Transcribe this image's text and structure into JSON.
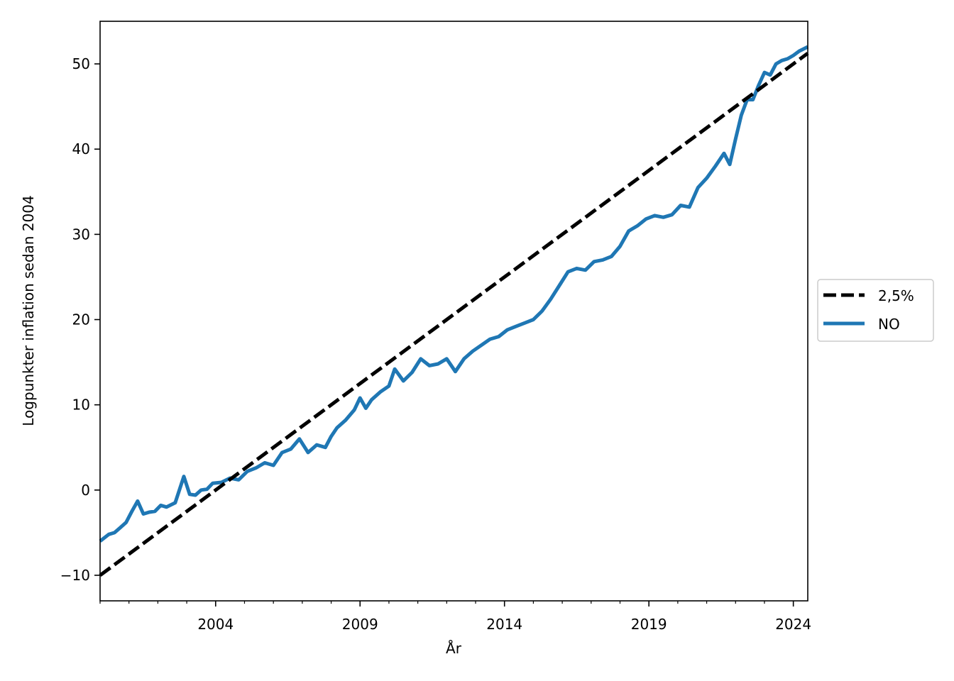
{
  "chart_data": {
    "type": "line",
    "title": "",
    "xlabel": "År",
    "ylabel": "Logpunkter inflation sedan 2004",
    "xlim": [
      2000.0,
      2024.5
    ],
    "ylim": [
      -13,
      55
    ],
    "xticks": [
      2004,
      2009,
      2014,
      2019,
      2024
    ],
    "yticks": [
      -10,
      0,
      10,
      20,
      30,
      40,
      50
    ],
    "grid": false,
    "legend": {
      "placement": "right, outside plot area",
      "entries": [
        "2,5%",
        "NO"
      ]
    },
    "series": [
      {
        "name": "2,5%",
        "style": "dashed",
        "color": "#000000",
        "x": [
          2000.0,
          2024.5
        ],
        "y": [
          -10.0,
          51.25
        ]
      },
      {
        "name": "NO",
        "style": "solid",
        "color": "#1f77b4",
        "x": [
          2000.0,
          2000.3,
          2000.5,
          2000.7,
          2000.9,
          2001.1,
          2001.3,
          2001.5,
          2001.7,
          2001.9,
          2002.1,
          2002.3,
          2002.6,
          2002.9,
          2003.1,
          2003.3,
          2003.5,
          2003.7,
          2003.9,
          2004.2,
          2004.5,
          2004.8,
          2005.1,
          2005.4,
          2005.7,
          2006.0,
          2006.3,
          2006.6,
          2006.9,
          2007.2,
          2007.5,
          2007.8,
          2008.0,
          2008.2,
          2008.5,
          2008.8,
          2009.0,
          2009.2,
          2009.4,
          2009.7,
          2010.0,
          2010.2,
          2010.5,
          2010.8,
          2011.1,
          2011.4,
          2011.7,
          2012.0,
          2012.3,
          2012.6,
          2012.9,
          2013.2,
          2013.5,
          2013.8,
          2014.1,
          2014.4,
          2014.7,
          2015.0,
          2015.3,
          2015.6,
          2015.9,
          2016.2,
          2016.5,
          2016.8,
          2017.1,
          2017.4,
          2017.7,
          2018.0,
          2018.3,
          2018.6,
          2018.9,
          2019.2,
          2019.5,
          2019.8,
          2020.1,
          2020.4,
          2020.7,
          2021.0,
          2021.3,
          2021.6,
          2021.8,
          2022.0,
          2022.2,
          2022.4,
          2022.6,
          2022.8,
          2023.0,
          2023.2,
          2023.4,
          2023.6,
          2023.8,
          2024.0,
          2024.2,
          2024.5
        ],
        "y": [
          -6.0,
          -5.2,
          -5.0,
          -4.4,
          -3.8,
          -2.5,
          -1.3,
          -2.8,
          -2.6,
          -2.5,
          -1.8,
          -2.0,
          -1.5,
          1.6,
          -0.5,
          -0.6,
          0.0,
          0.1,
          0.8,
          0.9,
          1.4,
          1.2,
          2.2,
          2.6,
          3.2,
          2.9,
          4.4,
          4.8,
          6.0,
          4.4,
          5.3,
          5.0,
          6.3,
          7.3,
          8.2,
          9.4,
          10.8,
          9.6,
          10.6,
          11.5,
          12.2,
          14.2,
          12.8,
          13.8,
          15.4,
          14.6,
          14.8,
          15.4,
          13.9,
          15.4,
          16.3,
          17.0,
          17.7,
          18.0,
          18.8,
          19.2,
          19.6,
          20.0,
          21.0,
          22.4,
          24.0,
          25.6,
          26.0,
          25.8,
          26.8,
          27.0,
          27.4,
          28.6,
          30.4,
          31.0,
          31.8,
          32.2,
          32.0,
          32.3,
          33.4,
          33.2,
          35.5,
          36.6,
          38.0,
          39.5,
          38.2,
          41.2,
          44.0,
          45.8,
          45.8,
          47.5,
          49.0,
          48.7,
          50.0,
          50.4,
          50.6,
          51.0,
          51.5,
          52.0
        ]
      }
    ]
  }
}
